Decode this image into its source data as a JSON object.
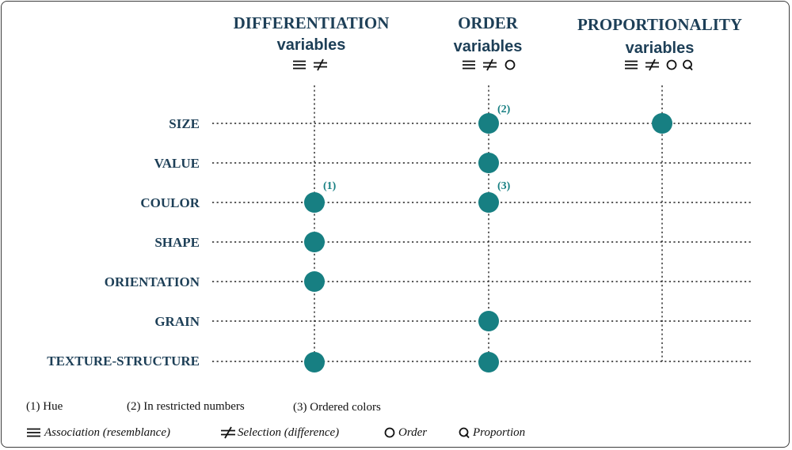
{
  "columns": [
    {
      "title": "DIFFERENTIATION",
      "subtitle": "variables",
      "symbols": [
        "association-icon",
        "selection-icon"
      ]
    },
    {
      "title": "ORDER",
      "subtitle": "variables",
      "symbols": [
        "association-icon",
        "selection-icon",
        "order-icon"
      ]
    },
    {
      "title": "PROPORTIONALITY",
      "subtitle": "variables",
      "symbols": [
        "association-icon",
        "selection-icon",
        "order-icon",
        "proportion-icon"
      ]
    }
  ],
  "rows": [
    {
      "label": "SIZE",
      "marks": [
        false,
        true,
        true
      ]
    },
    {
      "label": "VALUE",
      "marks": [
        false,
        true,
        false
      ]
    },
    {
      "label": "COULOR",
      "marks": [
        true,
        true,
        false
      ]
    },
    {
      "label": "SHAPE",
      "marks": [
        true,
        false,
        false
      ]
    },
    {
      "label": "ORIENTATION",
      "marks": [
        true,
        false,
        false
      ]
    },
    {
      "label": "GRAIN",
      "marks": [
        false,
        true,
        false
      ]
    },
    {
      "label": "TEXTURE-STRUCTURE",
      "marks": [
        true,
        true,
        false
      ]
    }
  ],
  "footmarks": [
    {
      "text": "(1)",
      "row": 2,
      "col": 0
    },
    {
      "text": "(2)",
      "row": 0,
      "col": 1
    },
    {
      "text": "(3)",
      "row": 2,
      "col": 1
    }
  ],
  "notes": [
    "(1) Hue",
    "(2) In restricted numbers",
    "(3) Ordered colors"
  ],
  "legend": {
    "association": "Association (resemblance)",
    "selection": "Selection (difference)",
    "order": "Order",
    "proportion": "Proportion"
  },
  "colors": {
    "dot": "#177f82",
    "heading": "#1d3f57",
    "line": "#222222"
  }
}
